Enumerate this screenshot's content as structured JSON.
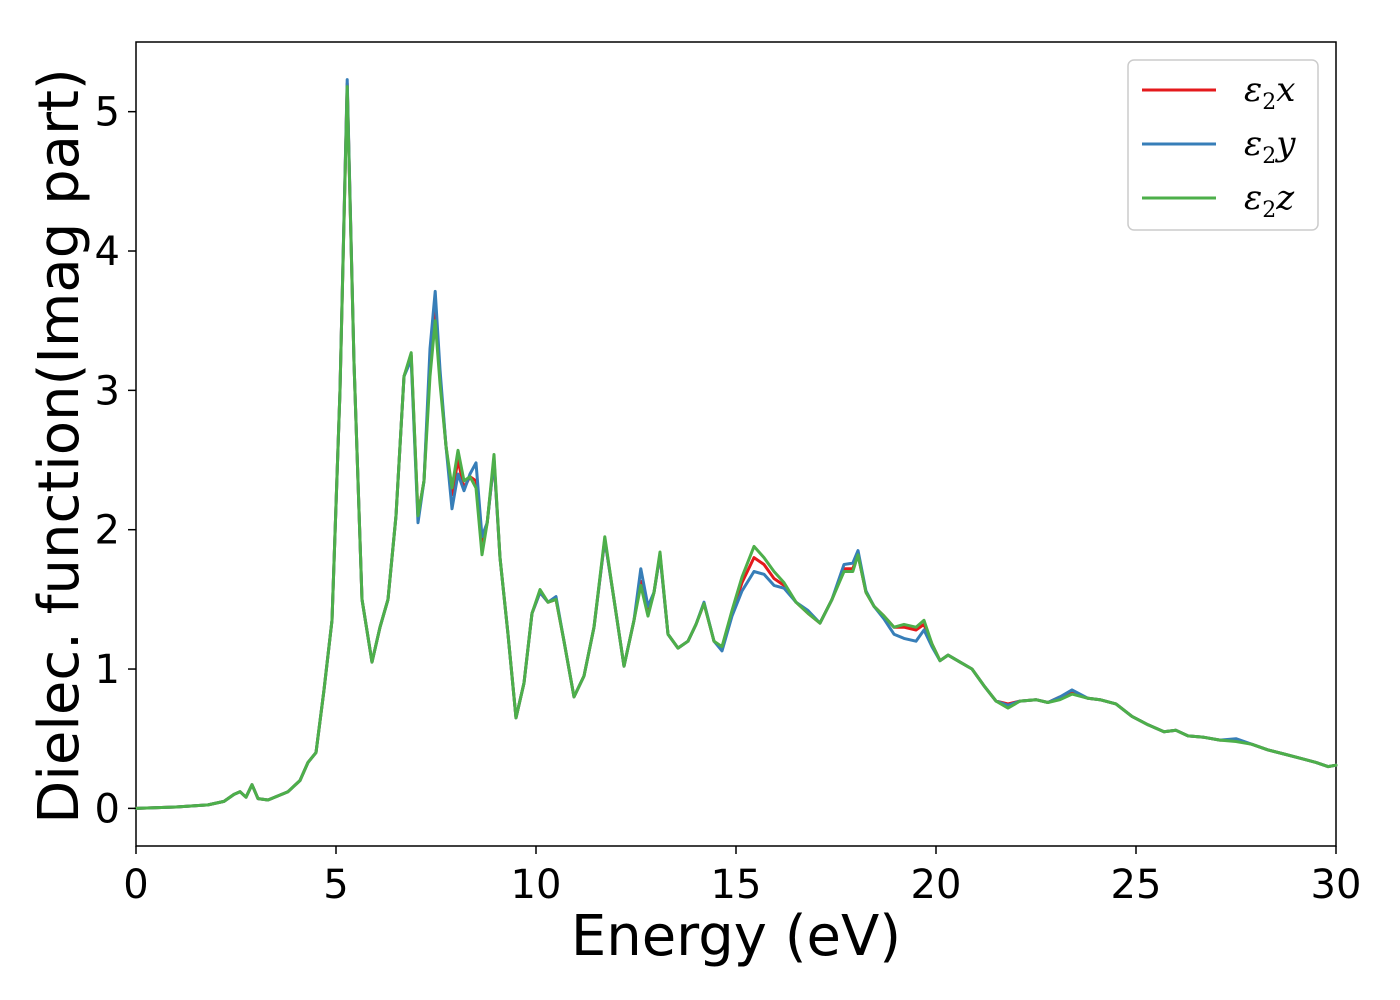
{
  "chart_data": {
    "type": "line",
    "title": "",
    "xlabel": "Energy (eV)",
    "ylabel": "Dielec. function(Imag part)",
    "xlim": [
      0,
      30
    ],
    "ylim": [
      -0.27,
      5.5
    ],
    "xticks": [
      0,
      5,
      10,
      15,
      20,
      25,
      30
    ],
    "xtick_labels": [
      "0",
      "5",
      "10",
      "15",
      "20",
      "25",
      "30"
    ],
    "yticks": [
      0,
      1,
      2,
      3,
      4,
      5
    ],
    "ytick_labels": [
      "0",
      "1",
      "2",
      "3",
      "4",
      "5"
    ],
    "grid": false,
    "legend_position": "top-right",
    "series": [
      {
        "name": "ε2x",
        "legend_base": "ε",
        "legend_sub": "2",
        "legend_var": "x",
        "color": "#e41a1c",
        "x": [
          0,
          1,
          1.8,
          2.2,
          2.45,
          2.6,
          2.75,
          2.9,
          3.05,
          3.3,
          3.8,
          4.1,
          4.3,
          4.5,
          4.7,
          4.9,
          5.1,
          5.28,
          5.45,
          5.65,
          5.9,
          6.1,
          6.3,
          6.5,
          6.7,
          6.88,
          7.05,
          7.2,
          7.35,
          7.48,
          7.6,
          7.75,
          7.9,
          8.05,
          8.2,
          8.35,
          8.5,
          8.65,
          8.78,
          8.95,
          9.1,
          9.3,
          9.5,
          9.7,
          9.9,
          10.1,
          10.3,
          10.5,
          10.7,
          10.95,
          11.2,
          11.45,
          11.72,
          11.95,
          12.2,
          12.45,
          12.62,
          12.8,
          12.95,
          13.1,
          13.3,
          13.55,
          13.8,
          14.0,
          14.2,
          14.45,
          14.65,
          14.9,
          15.15,
          15.45,
          15.7,
          15.95,
          16.2,
          16.5,
          16.8,
          17.1,
          17.4,
          17.7,
          17.92,
          18.05,
          18.25,
          18.45,
          18.7,
          18.95,
          19.2,
          19.5,
          19.7,
          19.9,
          20.1,
          20.3,
          20.6,
          20.9,
          21.2,
          21.5,
          21.8,
          22.1,
          22.5,
          22.8,
          23.1,
          23.4,
          23.8,
          24.1,
          24.5,
          24.9,
          25.3,
          25.7,
          26.0,
          26.3,
          26.7,
          27.1,
          27.5,
          27.9,
          28.3,
          28.7,
          29.1,
          29.5,
          29.8,
          30.0
        ],
        "y": [
          0,
          0.01,
          0.025,
          0.05,
          0.1,
          0.12,
          0.08,
          0.17,
          0.07,
          0.06,
          0.12,
          0.2,
          0.33,
          0.4,
          0.85,
          1.35,
          3.0,
          5.2,
          3.2,
          1.5,
          1.05,
          1.3,
          1.5,
          2.1,
          3.1,
          3.25,
          2.1,
          2.35,
          3.2,
          3.58,
          3.1,
          2.6,
          2.25,
          2.5,
          2.3,
          2.38,
          2.35,
          1.88,
          2.05,
          2.5,
          1.8,
          1.25,
          0.65,
          0.9,
          1.4,
          1.55,
          1.48,
          1.5,
          1.2,
          0.8,
          0.95,
          1.3,
          1.93,
          1.5,
          1.02,
          1.35,
          1.63,
          1.4,
          1.55,
          1.82,
          1.25,
          1.15,
          1.2,
          1.32,
          1.47,
          1.2,
          1.15,
          1.4,
          1.62,
          1.8,
          1.75,
          1.65,
          1.6,
          1.48,
          1.4,
          1.33,
          1.5,
          1.72,
          1.72,
          1.82,
          1.55,
          1.45,
          1.38,
          1.3,
          1.3,
          1.28,
          1.32,
          1.18,
          1.06,
          1.1,
          1.05,
          1.0,
          0.88,
          0.77,
          0.75,
          0.77,
          0.78,
          0.76,
          0.8,
          0.83,
          0.79,
          0.78,
          0.75,
          0.66,
          0.6,
          0.55,
          0.56,
          0.52,
          0.51,
          0.49,
          0.49,
          0.46,
          0.42,
          0.39,
          0.36,
          0.33,
          0.3,
          0.31
        ]
      },
      {
        "name": "ε2y",
        "legend_base": "ε",
        "legend_sub": "2",
        "legend_var": "y",
        "color": "#377eb8",
        "x": [
          0,
          1,
          1.8,
          2.2,
          2.45,
          2.6,
          2.75,
          2.9,
          3.05,
          3.3,
          3.8,
          4.1,
          4.3,
          4.5,
          4.7,
          4.9,
          5.1,
          5.28,
          5.45,
          5.65,
          5.9,
          6.1,
          6.3,
          6.5,
          6.7,
          6.88,
          7.05,
          7.2,
          7.35,
          7.48,
          7.6,
          7.75,
          7.9,
          8.05,
          8.2,
          8.35,
          8.5,
          8.65,
          8.78,
          8.95,
          9.1,
          9.3,
          9.5,
          9.7,
          9.9,
          10.1,
          10.3,
          10.5,
          10.7,
          10.95,
          11.2,
          11.45,
          11.72,
          11.95,
          12.2,
          12.45,
          12.62,
          12.8,
          12.95,
          13.1,
          13.3,
          13.55,
          13.8,
          14.0,
          14.2,
          14.45,
          14.65,
          14.9,
          15.15,
          15.45,
          15.7,
          15.95,
          16.2,
          16.5,
          16.8,
          17.1,
          17.4,
          17.7,
          17.92,
          18.05,
          18.25,
          18.45,
          18.7,
          18.95,
          19.2,
          19.5,
          19.7,
          19.9,
          20.1,
          20.3,
          20.6,
          20.9,
          21.2,
          21.5,
          21.8,
          22.1,
          22.5,
          22.8,
          23.1,
          23.4,
          23.8,
          24.1,
          24.5,
          24.9,
          25.3,
          25.7,
          26.0,
          26.3,
          26.7,
          27.1,
          27.5,
          27.9,
          28.3,
          28.7,
          29.1,
          29.5,
          29.8,
          30.0
        ],
        "y": [
          0,
          0.01,
          0.025,
          0.05,
          0.1,
          0.12,
          0.08,
          0.17,
          0.07,
          0.06,
          0.12,
          0.2,
          0.33,
          0.4,
          0.85,
          1.35,
          3.0,
          5.23,
          3.2,
          1.5,
          1.05,
          1.3,
          1.5,
          2.1,
          3.1,
          3.22,
          2.05,
          2.35,
          3.3,
          3.71,
          3.15,
          2.6,
          2.15,
          2.4,
          2.28,
          2.4,
          2.48,
          1.95,
          2.05,
          2.5,
          1.8,
          1.25,
          0.65,
          0.9,
          1.4,
          1.55,
          1.48,
          1.52,
          1.2,
          0.8,
          0.95,
          1.3,
          1.93,
          1.5,
          1.02,
          1.35,
          1.72,
          1.45,
          1.55,
          1.82,
          1.25,
          1.15,
          1.2,
          1.32,
          1.48,
          1.2,
          1.13,
          1.38,
          1.56,
          1.7,
          1.68,
          1.6,
          1.58,
          1.48,
          1.42,
          1.33,
          1.5,
          1.75,
          1.76,
          1.85,
          1.56,
          1.45,
          1.36,
          1.25,
          1.22,
          1.2,
          1.28,
          1.16,
          1.06,
          1.1,
          1.05,
          1.0,
          0.88,
          0.77,
          0.74,
          0.77,
          0.78,
          0.76,
          0.8,
          0.85,
          0.79,
          0.78,
          0.75,
          0.66,
          0.6,
          0.55,
          0.56,
          0.52,
          0.51,
          0.49,
          0.5,
          0.46,
          0.42,
          0.39,
          0.36,
          0.33,
          0.3,
          0.31
        ]
      },
      {
        "name": "ε2z",
        "legend_base": "ε",
        "legend_sub": "2",
        "legend_var": "z",
        "color": "#4daf4a",
        "x": [
          0,
          1,
          1.8,
          2.2,
          2.45,
          2.6,
          2.75,
          2.9,
          3.05,
          3.3,
          3.8,
          4.1,
          4.3,
          4.5,
          4.7,
          4.9,
          5.1,
          5.28,
          5.45,
          5.65,
          5.9,
          6.1,
          6.3,
          6.5,
          6.7,
          6.88,
          7.05,
          7.2,
          7.35,
          7.48,
          7.6,
          7.75,
          7.9,
          8.05,
          8.2,
          8.35,
          8.5,
          8.65,
          8.78,
          8.95,
          9.1,
          9.3,
          9.5,
          9.7,
          9.9,
          10.1,
          10.3,
          10.5,
          10.7,
          10.95,
          11.2,
          11.45,
          11.72,
          11.95,
          12.2,
          12.45,
          12.62,
          12.8,
          12.95,
          13.1,
          13.3,
          13.55,
          13.8,
          14.0,
          14.2,
          14.45,
          14.65,
          14.9,
          15.15,
          15.45,
          15.7,
          15.95,
          16.2,
          16.5,
          16.8,
          17.1,
          17.4,
          17.7,
          17.92,
          18.05,
          18.25,
          18.45,
          18.7,
          18.95,
          19.2,
          19.5,
          19.7,
          19.9,
          20.1,
          20.3,
          20.6,
          20.9,
          21.2,
          21.5,
          21.8,
          22.1,
          22.5,
          22.8,
          23.1,
          23.4,
          23.8,
          24.1,
          24.5,
          24.9,
          25.3,
          25.7,
          26.0,
          26.3,
          26.7,
          27.1,
          27.5,
          27.9,
          28.3,
          28.7,
          29.1,
          29.5,
          29.8,
          30.0
        ],
        "y": [
          0,
          0.01,
          0.025,
          0.05,
          0.1,
          0.12,
          0.08,
          0.17,
          0.07,
          0.06,
          0.12,
          0.2,
          0.33,
          0.4,
          0.85,
          1.35,
          3.0,
          5.18,
          3.2,
          1.5,
          1.05,
          1.3,
          1.5,
          2.1,
          3.1,
          3.27,
          2.1,
          2.35,
          3.1,
          3.5,
          3.05,
          2.6,
          2.3,
          2.57,
          2.35,
          2.38,
          2.3,
          1.82,
          2.05,
          2.54,
          1.8,
          1.25,
          0.65,
          0.9,
          1.4,
          1.57,
          1.48,
          1.5,
          1.2,
          0.8,
          0.95,
          1.3,
          1.95,
          1.5,
          1.02,
          1.35,
          1.6,
          1.38,
          1.55,
          1.84,
          1.25,
          1.15,
          1.2,
          1.32,
          1.47,
          1.2,
          1.16,
          1.42,
          1.66,
          1.88,
          1.8,
          1.7,
          1.62,
          1.48,
          1.4,
          1.33,
          1.5,
          1.7,
          1.7,
          1.82,
          1.55,
          1.45,
          1.38,
          1.3,
          1.32,
          1.3,
          1.35,
          1.18,
          1.06,
          1.1,
          1.05,
          1.0,
          0.88,
          0.77,
          0.72,
          0.77,
          0.78,
          0.76,
          0.78,
          0.82,
          0.79,
          0.78,
          0.75,
          0.66,
          0.6,
          0.55,
          0.56,
          0.52,
          0.51,
          0.49,
          0.48,
          0.46,
          0.42,
          0.39,
          0.36,
          0.33,
          0.3,
          0.31
        ]
      }
    ]
  }
}
